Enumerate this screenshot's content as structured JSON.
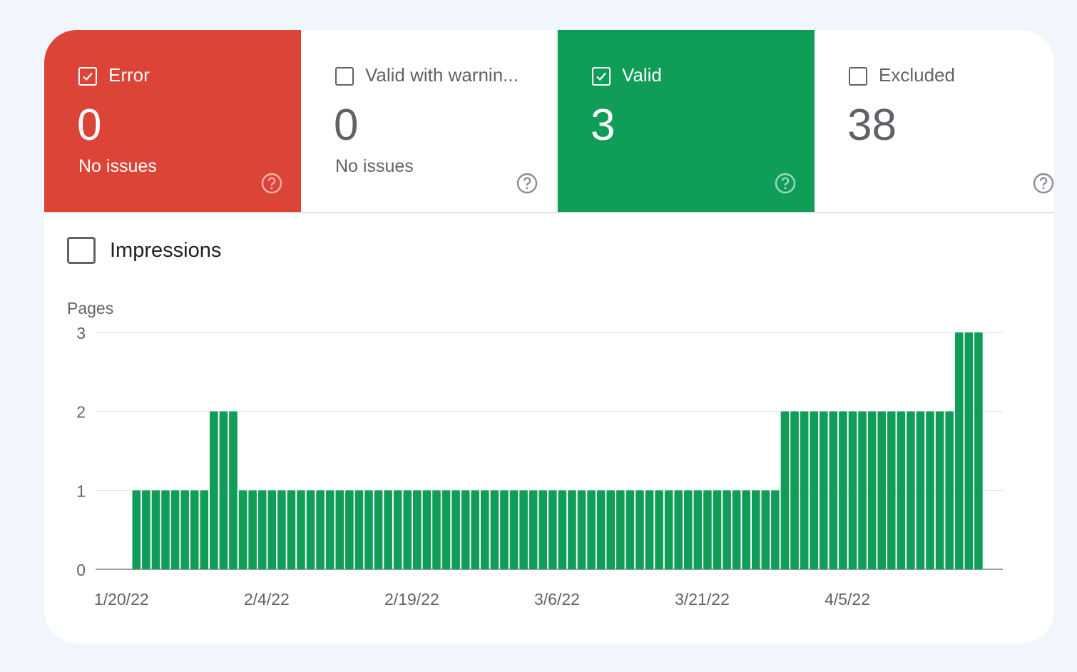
{
  "tiles": [
    {
      "id": "error",
      "label": "Error",
      "value": "0",
      "subtitle": "No issues",
      "checked": true
    },
    {
      "id": "warning",
      "label": "Valid with warnin...",
      "value": "0",
      "subtitle": "No issues",
      "checked": false
    },
    {
      "id": "valid",
      "label": "Valid",
      "value": "3",
      "subtitle": "",
      "checked": true
    },
    {
      "id": "excluded",
      "label": "Excluded",
      "value": "38",
      "subtitle": "",
      "checked": false
    }
  ],
  "impressions": {
    "label": "Impressions",
    "checked": false
  },
  "colors": {
    "error": "#db4437",
    "valid": "#0f9d58",
    "text": "#5f6368",
    "grid": "#e6e6e6"
  },
  "icons": {
    "help": "help-circle-icon",
    "check": "checkmark-icon"
  },
  "chart_data": {
    "type": "bar",
    "ylabel": "Pages",
    "ylim": [
      0,
      3
    ],
    "yticks": [
      0,
      1,
      2,
      3
    ],
    "xtick_labels": [
      "1/20/22",
      "2/4/22",
      "2/19/22",
      "3/6/22",
      "3/21/22",
      "4/5/22"
    ],
    "x_start": "1/20/22",
    "x_end": "4/21/22",
    "series": [
      {
        "color": "#0f9d58",
        "values": [
          1,
          1,
          1,
          1,
          1,
          1,
          1,
          1,
          2,
          2,
          2,
          1,
          1,
          1,
          1,
          1,
          1,
          1,
          1,
          1,
          1,
          1,
          1,
          1,
          1,
          1,
          1,
          1,
          1,
          1,
          1,
          1,
          1,
          1,
          1,
          1,
          1,
          1,
          1,
          1,
          1,
          1,
          1,
          1,
          1,
          1,
          1,
          1,
          1,
          1,
          1,
          1,
          1,
          1,
          1,
          1,
          1,
          1,
          1,
          1,
          1,
          1,
          1,
          1,
          1,
          1,
          1,
          2,
          2,
          2,
          2,
          2,
          2,
          2,
          2,
          2,
          2,
          2,
          2,
          2,
          2,
          2,
          2,
          2,
          2,
          3,
          3,
          3
        ]
      }
    ],
    "grid": true,
    "legend": "none"
  }
}
